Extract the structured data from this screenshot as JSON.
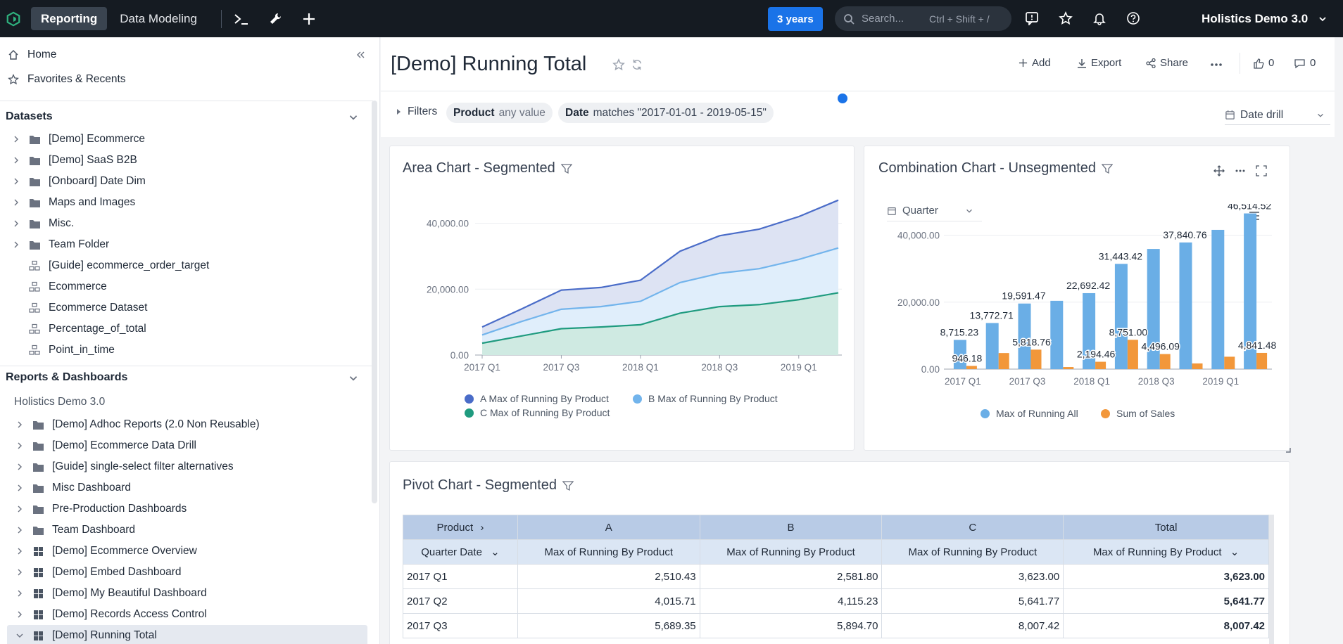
{
  "topbar": {
    "tabs": [
      {
        "label": "Reporting",
        "active": true
      },
      {
        "label": "Data Modeling",
        "active": false
      }
    ],
    "date_badge": "3 years",
    "search": {
      "placeholder": "Search...",
      "shortcut": "Ctrl + Shift + /"
    },
    "workspace": "Holistics Demo 3.0",
    "icons": [
      "terminal-icon",
      "wrench-icon",
      "plus-icon",
      "feedback-icon",
      "star-icon",
      "bell-icon",
      "help-icon"
    ]
  },
  "sidebar": {
    "top_items": [
      {
        "label": "Home",
        "icon": "home-icon"
      },
      {
        "label": "Favorites & Recents",
        "icon": "star-icon"
      }
    ],
    "datasets_title": "Datasets",
    "datasets": [
      {
        "label": "[Demo] Ecommerce",
        "type": "folder"
      },
      {
        "label": "[Demo] SaaS B2B",
        "type": "folder"
      },
      {
        "label": "[Onboard] Date Dim",
        "type": "folder"
      },
      {
        "label": "Maps and Images",
        "type": "folder"
      },
      {
        "label": "Misc.",
        "type": "folder"
      },
      {
        "label": "Team Folder",
        "type": "folder"
      },
      {
        "label": "[Guide] ecommerce_order_target",
        "type": "dataset"
      },
      {
        "label": "Ecommerce",
        "type": "dataset"
      },
      {
        "label": "Ecommerce Dataset",
        "type": "dataset"
      },
      {
        "label": "Percentage_of_total",
        "type": "dataset"
      },
      {
        "label": "Point_in_time",
        "type": "dataset"
      }
    ],
    "reports_title": "Reports & Dashboards",
    "workspace_label": "Holistics Demo 3.0",
    "reports": [
      {
        "label": "[Demo] Adhoc Reports (2.0 Non Reusable)",
        "type": "folder"
      },
      {
        "label": "[Demo] Ecommerce Data Drill",
        "type": "folder"
      },
      {
        "label": "[Guide] single-select filter alternatives",
        "type": "folder"
      },
      {
        "label": "Misc Dashboard",
        "type": "folder"
      },
      {
        "label": "Pre-Production Dashboards",
        "type": "folder"
      },
      {
        "label": "Team Dashboard",
        "type": "folder"
      },
      {
        "label": "[Demo] Ecommerce Overview",
        "type": "dashboard"
      },
      {
        "label": "[Demo] Embed Dashboard",
        "type": "dashboard"
      },
      {
        "label": "[Demo] My Beautiful Dashboard",
        "type": "dashboard"
      },
      {
        "label": "[Demo] Records Access Control",
        "type": "dashboard"
      },
      {
        "label": "[Demo] Running Total",
        "type": "dashboard",
        "selected": true
      }
    ]
  },
  "header": {
    "title": "[Demo] Running Total",
    "actions": {
      "add": "Add",
      "export": "Export",
      "share": "Share",
      "likes": "0",
      "comments": "0"
    }
  },
  "filters": {
    "label": "Filters",
    "product": {
      "name": "Product",
      "value": "any value"
    },
    "date": {
      "name": "Date",
      "value": "matches \"2017-01-01 - 2019-05-15\""
    },
    "date_drill": "Date drill"
  },
  "area_chart": {
    "title": "Area Chart - Segmented",
    "chart_data": {
      "type": "area",
      "x": [
        "2017 Q1",
        "2017 Q2",
        "2017 Q3",
        "2017 Q4",
        "2018 Q1",
        "2018 Q2",
        "2018 Q3",
        "2018 Q4",
        "2019 Q1",
        "2019 Q2"
      ],
      "x_tick_labels": [
        "2017 Q1",
        "2017 Q3",
        "2018 Q1",
        "2018 Q3",
        "2019 Q1"
      ],
      "y_ticks": [
        "0.00",
        "20,000.00",
        "40,000.00"
      ],
      "ylim": [
        0,
        48000
      ],
      "series": [
        {
          "name": "A Max of Running By Product",
          "color": "#4a6cc8",
          "values": [
            8500,
            14000,
            19700,
            20500,
            22700,
            31500,
            36200,
            38200,
            42000,
            47000
          ]
        },
        {
          "name": "B Max of Running By Product",
          "color": "#72b4ec",
          "values": [
            6100,
            10200,
            13900,
            14700,
            16300,
            22000,
            24800,
            26200,
            29000,
            32500
          ]
        },
        {
          "name": "C Max of Running By Product",
          "color": "#1f9b7f",
          "values": [
            3600,
            5800,
            8000,
            8500,
            9200,
            12700,
            14700,
            15300,
            16800,
            18900
          ]
        }
      ]
    }
  },
  "combo_chart": {
    "title": "Combination Chart - Unsegmented",
    "granularity": "Quarter",
    "chart_data": {
      "type": "bar",
      "x": [
        "2017 Q1",
        "2017 Q2",
        "2017 Q3",
        "2017 Q4",
        "2018 Q1",
        "2018 Q2",
        "2018 Q3",
        "2018 Q4",
        "2019 Q1",
        "2019 Q2"
      ],
      "x_tick_labels": [
        "2017 Q1",
        "2017 Q3",
        "2018 Q1",
        "2018 Q3",
        "2019 Q1"
      ],
      "y_ticks": [
        "0.00",
        "20,000.00",
        "40,000.00"
      ],
      "ylim": [
        0,
        46000
      ],
      "series": [
        {
          "name": "Max of Running All",
          "color": "#6aaee6",
          "values": [
            8715.23,
            13772.71,
            19591.47,
            20400,
            22692.42,
            31443.42,
            35900,
            37840.76,
            41600,
            46514.52
          ],
          "labels": [
            "8,715.23",
            "13,772.71",
            "19,591.47",
            "",
            "22,692.42",
            "31,443.42",
            "",
            "37,840.76",
            "",
            "46,514.52"
          ]
        },
        {
          "name": "Sum of Sales",
          "color": "#f2973a",
          "values": [
            946.18,
            4800,
            5818.76,
            620,
            2194.46,
            8751.0,
            4496.09,
            1700,
            3700,
            4841.48
          ],
          "labels": [
            "946.18",
            "",
            "5,818.76",
            "",
            "2,194.46",
            "8,751.00",
            "4,496.09",
            "",
            "",
            "4,841.48"
          ]
        }
      ]
    }
  },
  "pivot": {
    "title": "Pivot Chart - Segmented",
    "row_dim": "Product",
    "columns": [
      "A",
      "B",
      "C",
      "Total"
    ],
    "date_col": "Quarter Date",
    "measure": "Max of Running By Product",
    "rows": [
      {
        "date": "2017 Q1",
        "values": [
          "2,510.43",
          "2,581.80",
          "3,623.00",
          "3,623.00"
        ]
      },
      {
        "date": "2017 Q2",
        "values": [
          "4,015.71",
          "4,115.23",
          "5,641.77",
          "5,641.77"
        ]
      },
      {
        "date": "2017 Q3",
        "values": [
          "5,689.35",
          "5,894.70",
          "8,007.42",
          "8,007.42"
        ]
      }
    ]
  }
}
